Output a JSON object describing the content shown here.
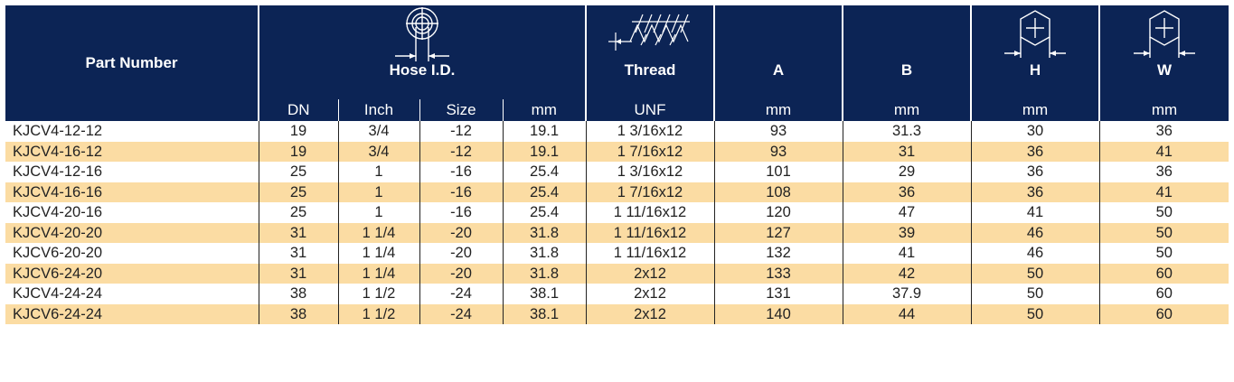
{
  "header": {
    "part_number": "Part Number",
    "hose_id": "Hose I.D.",
    "thread": "Thread",
    "a": "A",
    "b": "B",
    "h": "H",
    "w": "W"
  },
  "units": {
    "dn": "DN",
    "inch": "Inch",
    "size": "Size",
    "mm_hose": "mm",
    "unf": "UNF",
    "mm_a": "mm",
    "mm_b": "mm",
    "mm_h": "mm",
    "mm_w": "mm"
  },
  "icons": [
    "hose-cross-section-icon",
    "thread-profile-icon",
    "hex-nut-icon",
    "hex-nut-icon"
  ],
  "colors": {
    "header_bg": "#0c2455",
    "stripe": "#fbdca3"
  },
  "rows": [
    [
      "KJCV4-12-12",
      "19",
      "3/4",
      "-12",
      "19.1",
      "1 3/16x12",
      "93",
      "31.3",
      "30",
      "36"
    ],
    [
      "KJCV4-16-12",
      "19",
      "3/4",
      "-12",
      "19.1",
      "1 7/16x12",
      "93",
      "31",
      "36",
      "41"
    ],
    [
      "KJCV4-12-16",
      "25",
      "1",
      "-16",
      "25.4",
      "1 3/16x12",
      "101",
      "29",
      "36",
      "36"
    ],
    [
      "KJCV4-16-16",
      "25",
      "1",
      "-16",
      "25.4",
      "1 7/16x12",
      "108",
      "36",
      "36",
      "41"
    ],
    [
      "KJCV4-20-16",
      "25",
      "1",
      "-16",
      "25.4",
      "1 11/16x12",
      "120",
      "47",
      "41",
      "50"
    ],
    [
      "KJCV4-20-20",
      "31",
      "1 1/4",
      "-20",
      "31.8",
      "1 11/16x12",
      "127",
      "39",
      "46",
      "50"
    ],
    [
      "KJCV6-20-20",
      "31",
      "1 1/4",
      "-20",
      "31.8",
      "1 11/16x12",
      "132",
      "41",
      "46",
      "50"
    ],
    [
      "KJCV6-24-20",
      "31",
      "1 1/4",
      "-20",
      "31.8",
      "2x12",
      "133",
      "42",
      "50",
      "60"
    ],
    [
      "KJCV4-24-24",
      "38",
      "1 1/2",
      "-24",
      "38.1",
      "2x12",
      "131",
      "37.9",
      "50",
      "60"
    ],
    [
      "KJCV6-24-24",
      "38",
      "1 1/2",
      "-24",
      "38.1",
      "2x12",
      "140",
      "44",
      "50",
      "60"
    ]
  ]
}
